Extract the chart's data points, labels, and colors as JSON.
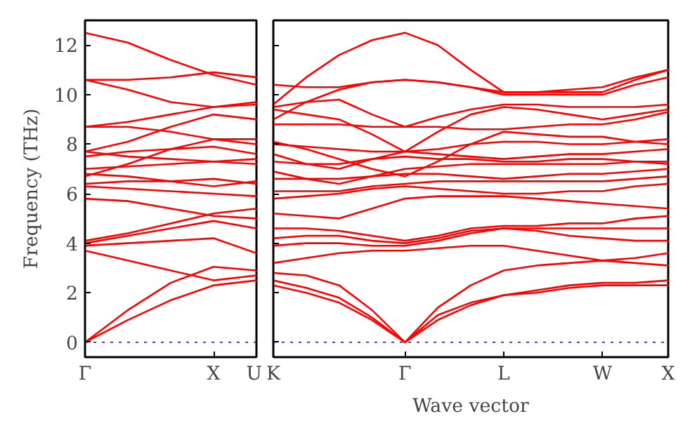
{
  "chart_data": [
    {
      "type": "line",
      "ylabel": "Frequency (THz)",
      "ylim": [
        -0.6,
        13
      ],
      "yticks": [
        0,
        2,
        4,
        6,
        8,
        10,
        12
      ],
      "grid": false,
      "marker": "none",
      "line_style": "solid",
      "ref_lines": [
        {
          "axis": "y",
          "value": 0,
          "color": "#0000ff",
          "line_style": "dotted"
        }
      ],
      "categories": [
        "Γ",
        null,
        null,
        "X",
        "U"
      ],
      "series": [
        {
          "color": "#ff0000",
          "values": [
            0,
            0.9,
            1.7,
            2.3,
            2.5
          ]
        },
        {
          "color": "#ff0000",
          "values": [
            0,
            1.3,
            2.4,
            3.05,
            2.9
          ]
        },
        {
          "color": "#ff0000",
          "values": [
            3.7,
            3.3,
            2.9,
            2.5,
            2.7
          ]
        },
        {
          "color": "#ff0000",
          "values": [
            3.9,
            4.0,
            4.1,
            4.2,
            3.6
          ]
        },
        {
          "color": "#ff0000",
          "values": [
            4.0,
            4.3,
            4.6,
            4.9,
            4.6
          ]
        },
        {
          "color": "#ff0000",
          "values": [
            4.1,
            4.4,
            4.8,
            5.2,
            5.4
          ]
        },
        {
          "color": "#ff0000",
          "values": [
            5.8,
            5.7,
            5.4,
            5.1,
            5.0
          ]
        },
        {
          "color": "#ff0000",
          "values": [
            6.3,
            6.2,
            6.1,
            6.0,
            5.9
          ]
        },
        {
          "color": "#ff0000",
          "values": [
            6.4,
            6.5,
            6.5,
            6.6,
            6.4
          ]
        },
        {
          "color": "#ff0000",
          "values": [
            6.8,
            6.7,
            6.5,
            6.3,
            6.5
          ]
        },
        {
          "color": "#ff0000",
          "values": [
            7.0,
            7.1,
            7.2,
            7.3,
            7.2
          ]
        },
        {
          "color": "#ff0000",
          "values": [
            7.5,
            7.7,
            7.8,
            7.9,
            7.6
          ]
        },
        {
          "color": "#ff0000",
          "values": [
            7.7,
            7.5,
            7.4,
            7.3,
            7.4
          ]
        },
        {
          "color": "#ff0000",
          "values": [
            6.7,
            7.2,
            7.8,
            8.2,
            8.2
          ]
        },
        {
          "color": "#ff0000",
          "values": [
            8.7,
            8.7,
            8.5,
            8.2,
            8.0
          ]
        },
        {
          "color": "#ff0000",
          "values": [
            7.7,
            8.1,
            8.7,
            9.2,
            9.0
          ]
        },
        {
          "color": "#ff0000",
          "values": [
            8.7,
            8.9,
            9.2,
            9.5,
            9.6
          ]
        },
        {
          "color": "#ff0000",
          "values": [
            10.6,
            10.2,
            9.7,
            9.5,
            9.7
          ]
        },
        {
          "color": "#ff0000",
          "values": [
            10.6,
            10.6,
            10.7,
            10.9,
            10.7
          ]
        },
        {
          "color": "#ff0000",
          "values": [
            12.5,
            12.1,
            11.4,
            10.8,
            10.4
          ]
        }
      ]
    },
    {
      "type": "line",
      "xlabel": "Wave vector",
      "ylim": [
        -0.6,
        13
      ],
      "yticks": [
        0,
        2,
        4,
        6,
        8,
        10,
        12
      ],
      "tick_labels": "x",
      "grid": false,
      "marker": "none",
      "line_style": "solid",
      "ref_lines": [
        {
          "axis": "y",
          "value": 0,
          "color": "#0000ff",
          "line_style": "dotted"
        }
      ],
      "categories": [
        "K",
        null,
        null,
        null,
        "Γ",
        null,
        null,
        "L",
        null,
        null,
        "W",
        null,
        "X"
      ],
      "series": [
        {
          "color": "#ff0000",
          "values": [
            2.3,
            2.0,
            1.6,
            0.9,
            0,
            0.9,
            1.5,
            1.9,
            2.0,
            2.2,
            2.3,
            2.3,
            2.3
          ]
        },
        {
          "color": "#ff0000",
          "values": [
            2.5,
            2.2,
            1.8,
            1.0,
            0,
            1.1,
            1.6,
            1.9,
            2.1,
            2.3,
            2.4,
            2.4,
            2.5
          ]
        },
        {
          "color": "#ff0000",
          "values": [
            2.8,
            2.7,
            2.3,
            1.3,
            0,
            1.4,
            2.3,
            2.9,
            3.1,
            3.2,
            3.3,
            3.2,
            3.1
          ]
        },
        {
          "color": "#ff0000",
          "values": [
            3.2,
            3.4,
            3.6,
            3.7,
            3.7,
            3.8,
            3.9,
            3.9,
            3.7,
            3.5,
            3.3,
            3.4,
            3.6
          ]
        },
        {
          "color": "#ff0000",
          "values": [
            3.9,
            4.0,
            4.0,
            3.9,
            3.9,
            4.1,
            4.4,
            4.6,
            4.5,
            4.3,
            4.2,
            4.1,
            4.1
          ]
        },
        {
          "color": "#ff0000",
          "values": [
            4.2,
            4.3,
            4.3,
            4.1,
            4.0,
            4.2,
            4.5,
            4.6,
            4.6,
            4.6,
            4.6,
            4.6,
            4.6
          ]
        },
        {
          "color": "#ff0000",
          "values": [
            4.6,
            4.6,
            4.5,
            4.3,
            4.1,
            4.3,
            4.6,
            4.7,
            4.7,
            4.8,
            4.8,
            5.0,
            5.1
          ]
        },
        {
          "color": "#ff0000",
          "values": [
            5.2,
            5.1,
            5.0,
            5.4,
            5.8,
            5.9,
            5.9,
            5.9,
            5.8,
            5.7,
            5.6,
            5.5,
            5.4
          ]
        },
        {
          "color": "#ff0000",
          "values": [
            5.8,
            5.9,
            6.0,
            6.2,
            6.3,
            6.2,
            6.1,
            6.0,
            6.0,
            6.1,
            6.1,
            6.3,
            6.4
          ]
        },
        {
          "color": "#ff0000",
          "values": [
            6.1,
            6.1,
            6.1,
            6.3,
            6.4,
            6.5,
            6.5,
            6.5,
            6.5,
            6.5,
            6.5,
            6.6,
            6.7
          ]
        },
        {
          "color": "#ff0000",
          "values": [
            6.6,
            6.6,
            6.6,
            6.7,
            6.8,
            6.8,
            6.7,
            6.6,
            6.7,
            6.8,
            6.8,
            6.9,
            7.0
          ]
        },
        {
          "color": "#ff0000",
          "values": [
            6.9,
            6.6,
            6.4,
            6.7,
            7.0,
            7.1,
            7.2,
            7.2,
            7.2,
            7.2,
            7.2,
            7.3,
            7.3
          ]
        },
        {
          "color": "#ff0000",
          "values": [
            7.3,
            7.2,
            7.2,
            7.4,
            7.5,
            7.4,
            7.4,
            7.3,
            7.3,
            7.4,
            7.4,
            7.3,
            7.2
          ]
        },
        {
          "color": "#ff0000",
          "values": [
            7.6,
            7.2,
            7.0,
            7.4,
            7.7,
            7.6,
            7.5,
            7.4,
            7.5,
            7.6,
            7.6,
            7.7,
            7.8
          ]
        },
        {
          "color": "#ff0000",
          "values": [
            8.0,
            7.9,
            7.8,
            7.7,
            7.7,
            7.8,
            8.0,
            8.1,
            8.1,
            8.0,
            8.0,
            8.1,
            8.2
          ]
        },
        {
          "color": "#ff0000",
          "values": [
            8.1,
            7.8,
            7.4,
            7.0,
            6.7,
            7.3,
            8.0,
            8.5,
            8.4,
            8.3,
            8.3,
            8.1,
            8.0
          ]
        },
        {
          "color": "#ff0000",
          "values": [
            8.8,
            8.8,
            8.8,
            8.7,
            8.7,
            8.7,
            8.6,
            8.6,
            8.7,
            8.8,
            8.8,
            9.0,
            9.3
          ]
        },
        {
          "color": "#ff0000",
          "values": [
            9.4,
            9.2,
            9.0,
            8.4,
            7.7,
            8.5,
            9.2,
            9.5,
            9.4,
            9.2,
            9.0,
            9.2,
            9.4
          ]
        },
        {
          "color": "#ff0000",
          "values": [
            9.5,
            9.7,
            9.8,
            9.2,
            8.7,
            9.1,
            9.4,
            9.6,
            9.6,
            9.5,
            9.5,
            9.5,
            9.6
          ]
        },
        {
          "color": "#ff0000",
          "values": [
            10.4,
            10.3,
            10.3,
            10.5,
            10.6,
            10.5,
            10.3,
            10.0,
            10.0,
            10.0,
            10.0,
            10.4,
            10.7
          ]
        },
        {
          "color": "#ff0000",
          "values": [
            9.0,
            9.7,
            10.2,
            10.5,
            10.6,
            10.5,
            10.3,
            10.1,
            10.1,
            10.2,
            10.3,
            10.7,
            11.0
          ]
        },
        {
          "color": "#ff0000",
          "values": [
            9.6,
            10.7,
            11.6,
            12.2,
            12.5,
            12.0,
            11.0,
            10.1,
            10.1,
            10.1,
            10.1,
            10.6,
            11.0
          ]
        }
      ]
    }
  ]
}
